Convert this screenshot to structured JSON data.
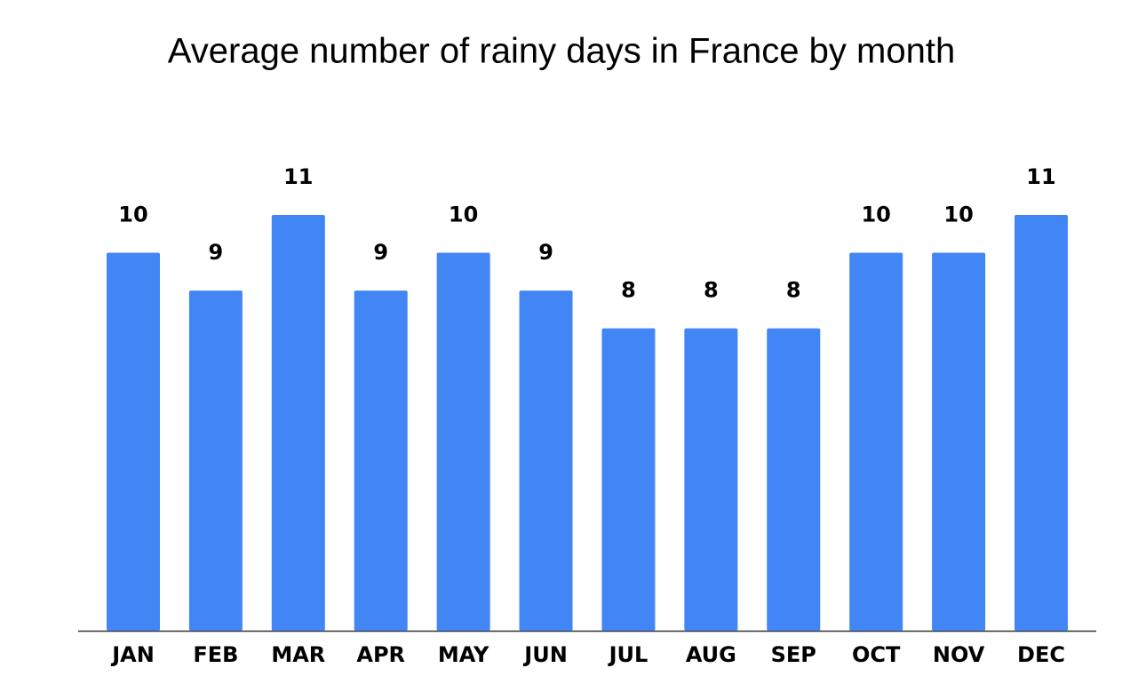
{
  "chart_data": {
    "type": "bar",
    "title": "Average number of rainy days in France by month",
    "categories": [
      "JAN",
      "FEB",
      "MAR",
      "APR",
      "MAY",
      "JUN",
      "JUL",
      "AUG",
      "SEP",
      "OCT",
      "NOV",
      "DEC"
    ],
    "values": [
      10,
      9,
      11,
      9,
      10,
      9,
      8,
      8,
      8,
      10,
      10,
      11
    ],
    "color": "#4285f4"
  }
}
